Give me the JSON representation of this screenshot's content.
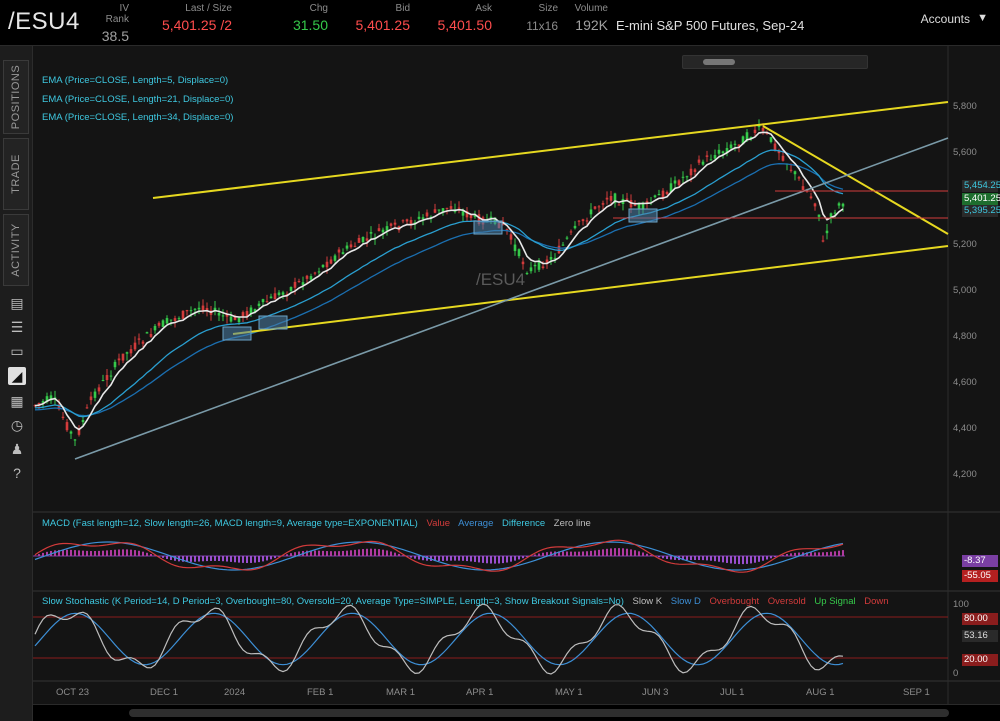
{
  "header": {
    "symbol": "/ESU4",
    "quotes": [
      {
        "label": "IV Rank",
        "value": "38.5",
        "color": "#a0a0a0"
      },
      {
        "label": "Last / Size",
        "value": "5,401.25 /2",
        "color": "#ff4d4d"
      },
      {
        "label": "Chg",
        "value": "31.50",
        "color": "#35c94a"
      },
      {
        "label": "Bid",
        "value": "5,401.25",
        "color": "#ff4d4d"
      },
      {
        "label": "Ask",
        "value": "5,401.50",
        "color": "#ff4d4d"
      },
      {
        "label": "Size",
        "value": "11x16",
        "color": "#8c8c8c"
      },
      {
        "label": "Volume",
        "value": "192K",
        "color": "#a0a0a0"
      }
    ],
    "description": "E-mini S&P 500 Futures, Sep-24",
    "accounts_label": "Accounts"
  },
  "sidebar": {
    "tabs": [
      "POSITIONS",
      "TRADE",
      "ACTIVITY"
    ],
    "icons": [
      "chart-icon",
      "list-icon",
      "tv-icon",
      "studies-icon",
      "grid-icon",
      "gauge-icon",
      "people-icon",
      "help-icon"
    ]
  },
  "studies": [
    {
      "label": "EMA (Price=CLOSE, Length=5, Displace=0)",
      "color": "#3ec8e0"
    },
    {
      "label": "EMA (Price=CLOSE, Length=21, Displace=0)",
      "color": "#3ec8e0"
    },
    {
      "label": "EMA (Price=CLOSE, Length=34, Displace=0)",
      "color": "#3ec8e0"
    }
  ],
  "watermark": "/ESU4",
  "price_axis": [
    "5,800",
    "5,600",
    "5,400",
    "5,200",
    "5,000",
    "4,800",
    "4,600",
    "4,400",
    "4,200"
  ],
  "price_tags": [
    {
      "text": "5,454.25",
      "bg": "#2a2a2a",
      "fg": "#3ec8e0"
    },
    {
      "text": "5,401.25",
      "bg": "#1e6e2e",
      "fg": "#ffffff"
    },
    {
      "text": "5,395.25",
      "bg": "#2a2a2a",
      "fg": "#3ec8e0"
    }
  ],
  "macd": {
    "title": "MACD (Fast length=12, Slow length=26, MACD length=9, Average type=EXPONENTIAL)",
    "legend": [
      {
        "text": "Value",
        "color": "#d23b3b"
      },
      {
        "text": "Average",
        "color": "#3d8fd6"
      },
      {
        "text": "Difference",
        "color": "#3ec8e0"
      },
      {
        "text": "Zero line",
        "color": "#bdbdbd"
      }
    ],
    "tags": [
      {
        "text": "-8.37",
        "bg": "#7a3fa3"
      },
      {
        "text": "-55.05",
        "bg": "#b52020"
      }
    ]
  },
  "stochastic": {
    "title": "Slow Stochastic (K Period=14, D Period=3, Overbought=80, Oversold=20, Average Type=SIMPLE, Length=3, Show Breakout Signals=No)",
    "legend": [
      {
        "text": "Slow K",
        "color": "#bdbdbd"
      },
      {
        "text": "Slow D",
        "color": "#3d8fd6"
      },
      {
        "text": "Overbought",
        "color": "#d23b3b"
      },
      {
        "text": "Oversold",
        "color": "#d23b3b"
      },
      {
        "text": "Up Signal",
        "color": "#35c94a"
      },
      {
        "text": "Down",
        "color": "#d23b3b"
      }
    ],
    "axis": [
      "100",
      "0"
    ],
    "tags": [
      {
        "text": "80.00",
        "bg": "#8a1d1d"
      },
      {
        "text": "53.16",
        "bg": "#2a2a2a"
      },
      {
        "text": "20.00",
        "bg": "#8a1d1d"
      }
    ]
  },
  "time_axis": [
    "OCT 23",
    "DEC 1",
    "2024",
    "FEB 1",
    "MAR 1",
    "APR 1",
    "MAY 1",
    "JUN 3",
    "JUL 1",
    "AUG 1",
    "SEP 1"
  ],
  "colors": {
    "trendline": "#e6d820",
    "midline": "#7a9aa8",
    "level": "#d23b3b",
    "up": "#35c94a",
    "down": "#d23b3b",
    "ema": "#2a9fd0",
    "ema_fast": "#e8e8e8"
  }
}
